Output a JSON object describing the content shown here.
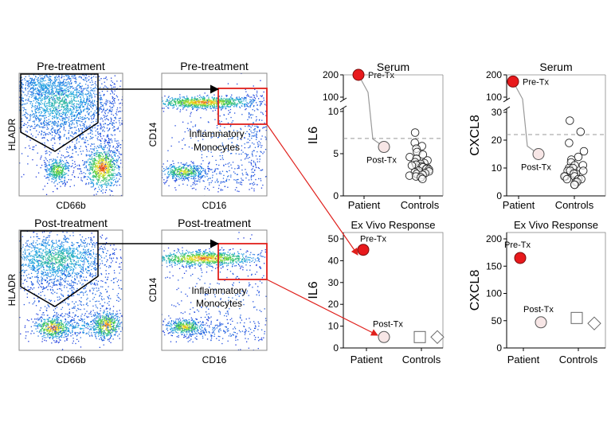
{
  "colors": {
    "frame": "#888888",
    "gate": "#000000",
    "highlight_box": "#e0201c",
    "connector": "#e0201c",
    "pre_tx_marker": "#e8191c",
    "post_tx_marker": "#f7e6e6",
    "dashed_threshold": "#999999",
    "connector_line_gray": "#999999",
    "density_low": "#1a3fd9",
    "density_high": "#e53015"
  },
  "flow_panels": [
    {
      "title": "Pre-treatment",
      "xlabel": "CD66b",
      "ylabel": "HLADR"
    },
    {
      "title": "Pre-treatment",
      "xlabel": "CD16",
      "ylabel": "CD14",
      "annotation": [
        "Inflammatory",
        "Monocytes"
      ]
    },
    {
      "title": "Post-treatment",
      "xlabel": "CD66b",
      "ylabel": "HLADR"
    },
    {
      "title": "Post-treatment",
      "xlabel": "CD16",
      "ylabel": "CD14",
      "annotation": [
        "Inflammatory",
        "Monocytes"
      ]
    }
  ],
  "chart_data": [
    {
      "type": "scatter",
      "title": "Serum",
      "ylabel": "IL6",
      "categories": [
        "Patient",
        "Controls"
      ],
      "axis_break": true,
      "lower_ylim": [
        0,
        10
      ],
      "lower_ticks": [
        "0",
        "5",
        "10"
      ],
      "upper_ylim": [
        100,
        200
      ],
      "upper_ticks": [
        "100",
        "200"
      ],
      "threshold": 6.8,
      "patient_points": [
        {
          "label": "Pre-Tx",
          "value": 200
        },
        {
          "label": "Post-Tx",
          "value": 5.8
        }
      ],
      "controls": [
        7.5,
        6.3,
        5.9,
        5.6,
        5.2,
        4.9,
        4.6,
        4.4,
        4.2,
        4.0,
        3.9,
        3.8,
        3.7,
        3.6,
        3.5,
        3.4,
        3.3,
        3.2,
        3.1,
        3.0,
        2.9,
        2.8,
        2.7,
        2.6,
        2.5,
        2.4,
        2.3,
        2.2,
        2.0
      ]
    },
    {
      "type": "scatter",
      "title": "Serum",
      "ylabel": "CXCL8",
      "categories": [
        "Patient",
        "Controls"
      ],
      "axis_break": true,
      "lower_ylim": [
        0,
        30
      ],
      "lower_ticks": [
        "0",
        "10",
        "20",
        "30"
      ],
      "upper_ylim": [
        100,
        200
      ],
      "upper_ticks": [
        "100",
        "200"
      ],
      "threshold": 22,
      "patient_points": [
        {
          "label": "Pre-Tx",
          "value": 170
        },
        {
          "label": "Post-Tx",
          "value": 15
        }
      ],
      "controls": [
        27,
        23,
        19,
        16,
        14,
        13,
        12,
        11,
        11,
        10,
        10,
        9,
        9,
        9,
        8,
        8,
        8,
        7,
        7,
        7,
        6,
        6,
        6,
        5,
        5,
        4,
        4
      ]
    },
    {
      "type": "scatter",
      "title": "Ex Vivo Response",
      "ylabel": "IL6",
      "categories": [
        "Patient",
        "Controls"
      ],
      "ylim": [
        0,
        50
      ],
      "yticks": [
        "0",
        "10",
        "20",
        "30",
        "40",
        "50"
      ],
      "patient_points": [
        {
          "label": "Pre-Tx",
          "value": 45
        },
        {
          "label": "Post-Tx",
          "value": 5
        }
      ],
      "controls": [
        {
          "marker": "square",
          "value": 5
        },
        {
          "marker": "diamond",
          "value": 5
        }
      ]
    },
    {
      "type": "scatter",
      "title": "Ex Vivo Response",
      "ylabel": "CXCL8",
      "categories": [
        "Patient",
        "Controls"
      ],
      "ylim": [
        0,
        200
      ],
      "yticks": [
        "0",
        "50",
        "100",
        "150",
        "200"
      ],
      "patient_points": [
        {
          "label": "Pre-Tx",
          "value": 165
        },
        {
          "label": "Post-Tx",
          "value": 47
        }
      ],
      "controls": [
        {
          "marker": "square",
          "value": 55
        },
        {
          "marker": "diamond",
          "value": 45
        }
      ]
    }
  ]
}
